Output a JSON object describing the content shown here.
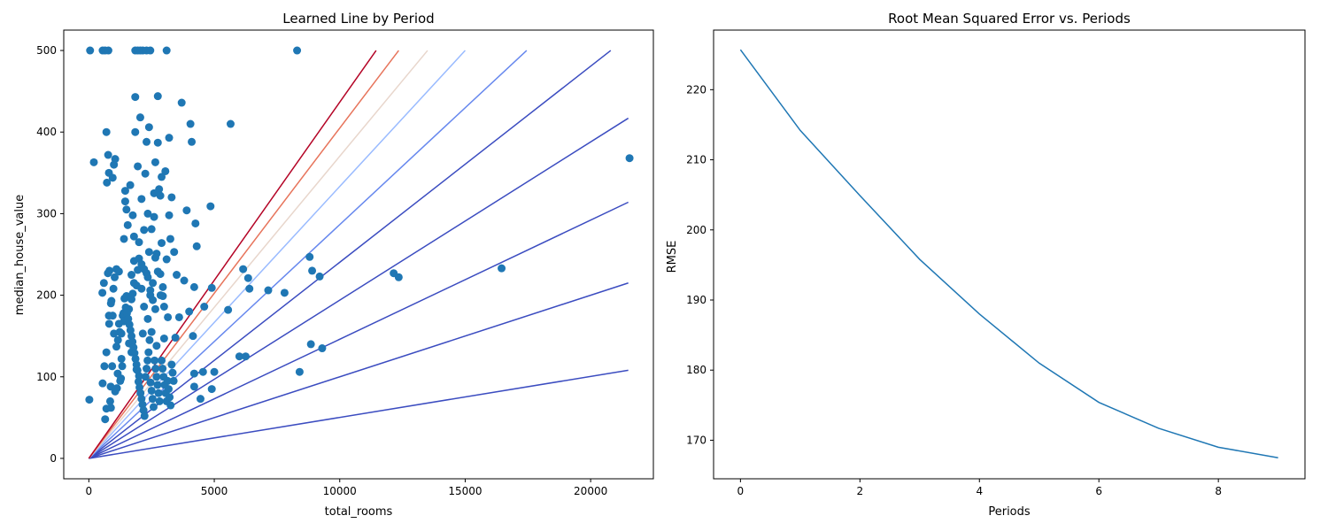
{
  "chart_data": [
    {
      "type": "scatter",
      "title": "Learned Line by Period",
      "xlabel": "total_rooms",
      "ylabel": "median_house_value",
      "xlim": [
        -1000,
        22500
      ],
      "ylim": [
        -25,
        525
      ],
      "xticks": [
        0,
        5000,
        10000,
        15000,
        20000
      ],
      "yticks": [
        0,
        100,
        200,
        300,
        400,
        500
      ],
      "grid": false,
      "point_color": "#1f77b4",
      "points": [
        [
          50,
          500
        ],
        [
          550,
          500
        ],
        [
          650,
          500
        ],
        [
          780,
          500
        ],
        [
          1850,
          500
        ],
        [
          1950,
          500
        ],
        [
          2050,
          500
        ],
        [
          2150,
          500
        ],
        [
          2300,
          500
        ],
        [
          2450,
          500
        ],
        [
          3100,
          500
        ],
        [
          8300,
          500
        ],
        [
          20,
          72
        ],
        [
          200,
          363
        ],
        [
          550,
          92
        ],
        [
          600,
          215
        ],
        [
          650,
          48
        ],
        [
          700,
          61
        ],
        [
          700,
          400
        ],
        [
          720,
          338
        ],
        [
          770,
          372
        ],
        [
          800,
          350
        ],
        [
          800,
          175
        ],
        [
          820,
          230
        ],
        [
          850,
          70
        ],
        [
          870,
          88
        ],
        [
          880,
          62
        ],
        [
          900,
          193
        ],
        [
          950,
          344
        ],
        [
          950,
          175
        ],
        [
          1000,
          153
        ],
        [
          1000,
          360
        ],
        [
          1050,
          367
        ],
        [
          1050,
          82
        ],
        [
          1100,
          232
        ],
        [
          1100,
          137
        ],
        [
          1150,
          104
        ],
        [
          1200,
          165
        ],
        [
          1200,
          229
        ],
        [
          1250,
          95
        ],
        [
          1300,
          122
        ],
        [
          1300,
          153
        ],
        [
          1350,
          175
        ],
        [
          1400,
          168
        ],
        [
          1400,
          269
        ],
        [
          1450,
          328
        ],
        [
          1450,
          315
        ],
        [
          1500,
          305
        ],
        [
          1500,
          199
        ],
        [
          1550,
          286
        ],
        [
          1600,
          183
        ],
        [
          1600,
          141
        ],
        [
          1650,
          335
        ],
        [
          1700,
          195
        ],
        [
          1700,
          130
        ],
        [
          1750,
          298
        ],
        [
          1800,
          272
        ],
        [
          1800,
          242
        ],
        [
          1850,
          400
        ],
        [
          1850,
          443
        ],
        [
          1900,
          109
        ],
        [
          1950,
          231
        ],
        [
          1950,
          358
        ],
        [
          2000,
          265
        ],
        [
          2000,
          101
        ],
        [
          2050,
          418
        ],
        [
          2100,
          208
        ],
        [
          2100,
          318
        ],
        [
          2150,
          153
        ],
        [
          2200,
          280
        ],
        [
          2200,
          186
        ],
        [
          2250,
          349
        ],
        [
          2300,
          388
        ],
        [
          2300,
          227
        ],
        [
          2350,
          171
        ],
        [
          2350,
          300
        ],
        [
          2400,
          406
        ],
        [
          2400,
          253
        ],
        [
          2450,
          200
        ],
        [
          2500,
          155
        ],
        [
          2500,
          281
        ],
        [
          2550,
          215
        ],
        [
          2600,
          325
        ],
        [
          2600,
          296
        ],
        [
          2650,
          363
        ],
        [
          2650,
          183
        ],
        [
          2700,
          251
        ],
        [
          2700,
          138
        ],
        [
          2750,
          444
        ],
        [
          2750,
          387
        ],
        [
          2800,
          330
        ],
        [
          2850,
          322
        ],
        [
          2900,
          345
        ],
        [
          2900,
          264
        ],
        [
          2950,
          210
        ],
        [
          3000,
          186
        ],
        [
          3000,
          147
        ],
        [
          3050,
          352
        ],
        [
          3100,
          244
        ],
        [
          3150,
          173
        ],
        [
          3200,
          393
        ],
        [
          3200,
          298
        ],
        [
          3250,
          269
        ],
        [
          3300,
          320
        ],
        [
          3400,
          253
        ],
        [
          3450,
          148
        ],
        [
          3500,
          225
        ],
        [
          3600,
          173
        ],
        [
          3700,
          436
        ],
        [
          3800,
          218
        ],
        [
          3900,
          304
        ],
        [
          4000,
          180
        ],
        [
          4050,
          410
        ],
        [
          4100,
          388
        ],
        [
          4200,
          210
        ],
        [
          4250,
          288
        ],
        [
          4300,
          260
        ],
        [
          4150,
          150
        ],
        [
          4200,
          104
        ],
        [
          4200,
          88
        ],
        [
          4450,
          73
        ],
        [
          4550,
          106
        ],
        [
          4600,
          186
        ],
        [
          4850,
          309
        ],
        [
          4900,
          209
        ],
        [
          4900,
          85
        ],
        [
          5000,
          106
        ],
        [
          5550,
          182
        ],
        [
          5650,
          410
        ],
        [
          6000,
          125
        ],
        [
          6150,
          232
        ],
        [
          6250,
          125
        ],
        [
          6350,
          221
        ],
        [
          6400,
          208
        ],
        [
          7150,
          206
        ],
        [
          7800,
          203
        ],
        [
          8400,
          106
        ],
        [
          8800,
          247
        ],
        [
          8850,
          140
        ],
        [
          8900,
          230
        ],
        [
          9200,
          223
        ],
        [
          9300,
          135
        ],
        [
          12150,
          227
        ],
        [
          12350,
          222
        ],
        [
          16450,
          233
        ],
        [
          21550,
          368
        ],
        [
          540,
          203
        ],
        [
          620,
          113
        ],
        [
          700,
          130
        ],
        [
          760,
          227
        ],
        [
          810,
          165
        ],
        [
          880,
          190
        ],
        [
          930,
          113
        ],
        [
          980,
          208
        ],
        [
          1030,
          222
        ],
        [
          1120,
          86
        ],
        [
          1160,
          145
        ],
        [
          1230,
          155
        ],
        [
          1280,
          98
        ],
        [
          1330,
          113
        ],
        [
          1380,
          178
        ],
        [
          1420,
          196
        ],
        [
          1470,
          185
        ],
        [
          1520,
          178
        ],
        [
          1570,
          171
        ],
        [
          1620,
          164
        ],
        [
          1660,
          157
        ],
        [
          1700,
          150
        ],
        [
          1740,
          143
        ],
        [
          1780,
          136
        ],
        [
          1820,
          129
        ],
        [
          1860,
          122
        ],
        [
          1900,
          115
        ],
        [
          1940,
          108
        ],
        [
          1980,
          94
        ],
        [
          2020,
          87
        ],
        [
          2060,
          80
        ],
        [
          2100,
          73
        ],
        [
          2140,
          66
        ],
        [
          2180,
          59
        ],
        [
          2220,
          52
        ],
        [
          2260,
          100
        ],
        [
          2300,
          110
        ],
        [
          2340,
          120
        ],
        [
          2380,
          130
        ],
        [
          2420,
          145
        ],
        [
          2460,
          93
        ],
        [
          2500,
          83
        ],
        [
          2540,
          73
        ],
        [
          2580,
          63
        ],
        [
          2620,
          120
        ],
        [
          2660,
          110
        ],
        [
          2700,
          100
        ],
        [
          2740,
          90
        ],
        [
          2780,
          80
        ],
        [
          2820,
          70
        ],
        [
          2860,
          200
        ],
        [
          2900,
          120
        ],
        [
          2940,
          110
        ],
        [
          2980,
          100
        ],
        [
          3020,
          90
        ],
        [
          3060,
          80
        ],
        [
          3100,
          70
        ],
        [
          3140,
          95
        ],
        [
          3180,
          85
        ],
        [
          3220,
          75
        ],
        [
          3260,
          65
        ],
        [
          3300,
          115
        ],
        [
          3340,
          105
        ],
        [
          3380,
          95
        ],
        [
          1700,
          225
        ],
        [
          1750,
          202
        ],
        [
          1800,
          215
        ],
        [
          1900,
          212
        ],
        [
          2000,
          245
        ],
        [
          2100,
          238
        ],
        [
          2200,
          232
        ],
        [
          2350,
          222
        ],
        [
          2450,
          206
        ],
        [
          2550,
          194
        ],
        [
          2650,
          246
        ],
        [
          2750,
          229
        ],
        [
          2850,
          226
        ],
        [
          2950,
          199
        ]
      ],
      "lines": [
        {
          "x1": 21500,
          "y1": 108,
          "color": "#3b4cc0"
        },
        {
          "x1": 21500,
          "y1": 215,
          "color": "#3b4cc0"
        },
        {
          "x1": 21500,
          "y1": 314,
          "color": "#3b4cc0"
        },
        {
          "x1": 21500,
          "y1": 417,
          "color": "#3b4cc0"
        },
        {
          "x1": 20800,
          "y1": 500,
          "color": "#3b4cc0"
        },
        {
          "x1": 17450,
          "y1": 500,
          "color": "#6788ee"
        },
        {
          "x1": 15000,
          "y1": 500,
          "color": "#9abbff"
        },
        {
          "x1": 13500,
          "y1": 500,
          "color": "#e8d6cc"
        },
        {
          "x1": 12350,
          "y1": 500,
          "color": "#e7745b"
        },
        {
          "x1": 11450,
          "y1": 500,
          "color": "#b40426"
        }
      ]
    },
    {
      "type": "line",
      "title": "Root Mean Squared Error vs. Periods",
      "xlabel": "Periods",
      "ylabel": "RMSE",
      "xlim": [
        -0.45,
        9.45
      ],
      "ylim": [
        164.5,
        228.5
      ],
      "xticks": [
        0,
        2,
        4,
        6,
        8
      ],
      "yticks": [
        170,
        180,
        190,
        200,
        210,
        220
      ],
      "grid": false,
      "color": "#1f77b4",
      "x": [
        0,
        1,
        2,
        3,
        4,
        5,
        6,
        7,
        8,
        9
      ],
      "y": [
        225.7,
        214.2,
        204.9,
        195.8,
        188.0,
        181.0,
        175.4,
        171.7,
        169.0,
        167.5
      ]
    }
  ]
}
